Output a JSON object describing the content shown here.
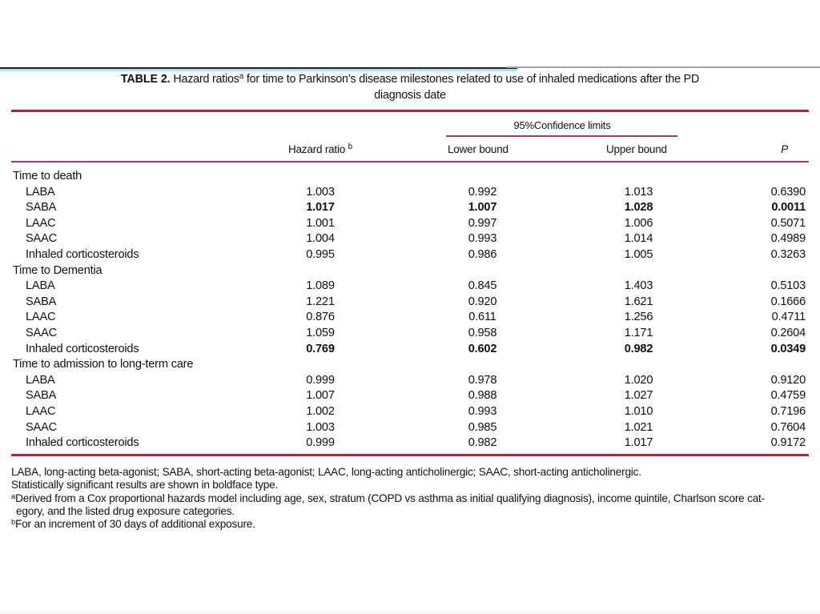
{
  "colors": {
    "rule_thick": "#a12c3f",
    "rule_thin": "#b23a50",
    "cyan": "#a6e4ea",
    "gray": "#a3a3a3",
    "black_line": "#1f1f1f",
    "text": "#111111"
  },
  "title": {
    "label": "TABLE 2.",
    "text1": " Hazard ratios",
    "sup": "a",
    "text2": " for time to Parkinson’s disease milestones related to use of inhaled medications after the PD",
    "line2": "diagnosis date"
  },
  "header": {
    "ci_group": "95%Confidence limits",
    "hazard_ratio": "Hazard ratio",
    "hazard_ratio_sup": "b",
    "lower": "Lower bound",
    "upper": "Upper bound",
    "p": "P"
  },
  "table": {
    "sections": [
      {
        "title": "Time to death",
        "rows": [
          {
            "label": "LABA",
            "hr": "1.003",
            "lower": "0.992",
            "upper": "1.013",
            "p": "0.6390",
            "bold": false
          },
          {
            "label": "SABA",
            "hr": "1.017",
            "lower": "1.007",
            "upper": "1.028",
            "p": "0.0011",
            "bold": true
          },
          {
            "label": "LAAC",
            "hr": "1.001",
            "lower": "0.997",
            "upper": "1.006",
            "p": "0.5071",
            "bold": false
          },
          {
            "label": "SAAC",
            "hr": "1.004",
            "lower": "0.993",
            "upper": "1.014",
            "p": "0.4989",
            "bold": false
          },
          {
            "label": "Inhaled corticosteroids",
            "hr": "0.995",
            "lower": "0.986",
            "upper": "1.005",
            "p": "0.3263",
            "bold": false
          }
        ]
      },
      {
        "title": "Time to Dementia",
        "rows": [
          {
            "label": "LABA",
            "hr": "1.089",
            "lower": "0.845",
            "upper": "1.403",
            "p": "0.5103",
            "bold": false
          },
          {
            "label": "SABA",
            "hr": "1.221",
            "lower": "0.920",
            "upper": "1.621",
            "p": "0.1666",
            "bold": false
          },
          {
            "label": "LAAC",
            "hr": "0.876",
            "lower": "0.611",
            "upper": "1.256",
            "p": "0.4711",
            "bold": false
          },
          {
            "label": "SAAC",
            "hr": "1.059",
            "lower": "0.958",
            "upper": "1.171",
            "p": "0.2604",
            "bold": false
          },
          {
            "label": "Inhaled corticosteroids",
            "hr": "0.769",
            "lower": "0.602",
            "upper": "0.982",
            "p": "0.0349",
            "bold": true
          }
        ]
      },
      {
        "title": "Time to admission to long-term care",
        "rows": [
          {
            "label": "LABA",
            "hr": "0.999",
            "lower": "0.978",
            "upper": "1.020",
            "p": "0.9120",
            "bold": false
          },
          {
            "label": "SABA",
            "hr": "1.007",
            "lower": "0.988",
            "upper": "1.027",
            "p": "0.4759",
            "bold": false
          },
          {
            "label": "LAAC",
            "hr": "1.002",
            "lower": "0.993",
            "upper": "1.010",
            "p": "0.7196",
            "bold": false
          },
          {
            "label": "SAAC",
            "hr": "1.003",
            "lower": "0.985",
            "upper": "1.021",
            "p": "0.7604",
            "bold": false
          },
          {
            "label": "Inhaled corticosteroids",
            "hr": "0.999",
            "lower": "0.982",
            "upper": "1.017",
            "p": "0.9172",
            "bold": false
          }
        ]
      }
    ]
  },
  "footnotes": [
    {
      "sup": "",
      "text": "LABA, long-acting beta-agonist; SABA, short-acting beta-agonist; LAAC, long-acting anticholinergic; SAAC, short-acting anticholinergic.",
      "indent": false
    },
    {
      "sup": "",
      "text": "Statistically significant results are shown in boldface type.",
      "indent": false
    },
    {
      "sup": "a",
      "text": "Derived from a Cox proportional hazards model including age, sex, stratum (COPD vs asthma as initial qualifying diagnosis), income quintile, Charlson score cat-",
      "indent": false
    },
    {
      "sup": "",
      "text": "egory, and the listed drug exposure categories.",
      "indent": true
    },
    {
      "sup": "b",
      "text": "For an increment of 30 days of additional exposure.",
      "indent": false
    }
  ]
}
